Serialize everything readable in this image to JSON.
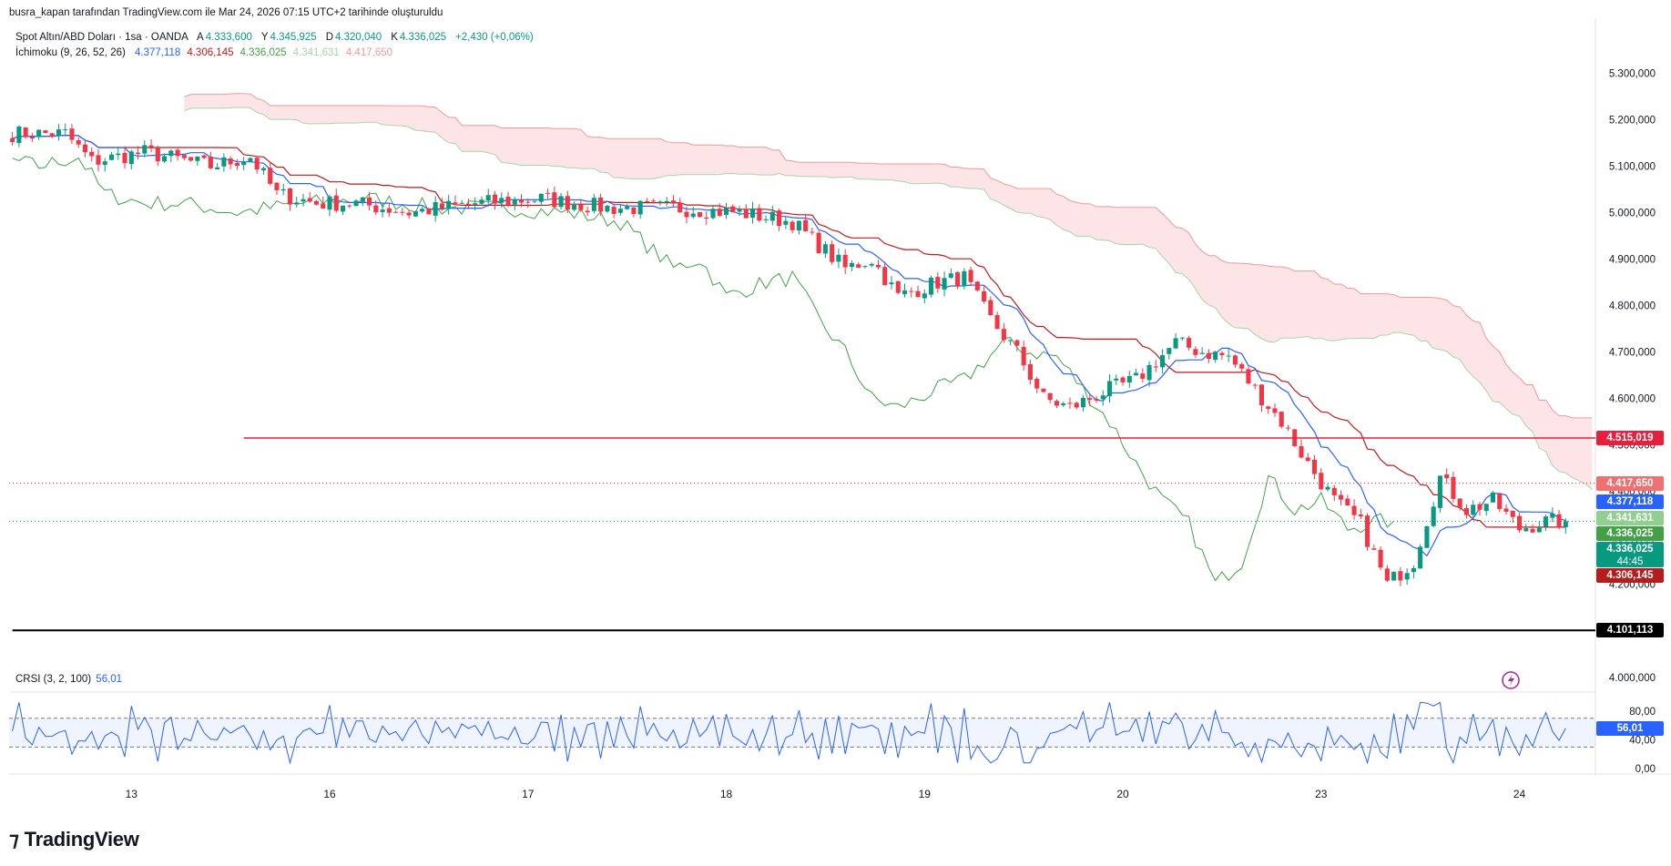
{
  "header": {
    "credit": "busra_kapan tarafından TradingView.com ile Mar 24, 2026 07:15 UTC+2 tarihinde oluşturuldu"
  },
  "legend": {
    "symbol": "Spot Altın/ABD Doları · 1sa · OANDA",
    "ohlc": [
      {
        "k": "A",
        "v": "4.333,600"
      },
      {
        "k": "Y",
        "v": "4.345,925"
      },
      {
        "k": "D",
        "v": "4.320,040"
      },
      {
        "k": "K",
        "v": "4.336,025"
      },
      {
        "k": "",
        "v": "+2,430 (+0,06%)"
      }
    ],
    "ichimoku_label": "İchimoku (9, 26, 52, 26)",
    "ichimoku_values": [
      {
        "v": "4.377,118",
        "color": "#2962ff"
      },
      {
        "v": "4.306,145",
        "color": "#b71c1c"
      },
      {
        "v": "4.336,025",
        "color": "#43a047"
      },
      {
        "v": "4.341,631",
        "color": "#a5d6a7"
      },
      {
        "v": "4.417,650",
        "color": "#ef9a9a"
      }
    ],
    "crsi_label": "CRSI (3, 2, 100)",
    "crsi_value": "56,01"
  },
  "brand": {
    "name": "TradingView"
  },
  "colors": {
    "up": "#089981",
    "down": "#f23645",
    "tenkan": "#2962ff",
    "kijun": "#b71c1c",
    "chikou": "#43a047",
    "span_a": "#a5d6a7",
    "span_b": "#ef9a9a",
    "crsi": "#2962ff",
    "hline_red": "#e91e3c",
    "hline_black": "#000000"
  },
  "chart_data": [
    {
      "type": "candlestick",
      "ylim": [
        3980000,
        5340000
      ],
      "y_ticks": [
        "5.300,000",
        "5.200,000",
        "5.100,000",
        "5.000,000",
        "4.900,000",
        "4.800,000",
        "4.700,000",
        "4.600,000",
        "4.500,000",
        "4.400,000",
        "4.300,000",
        "4.200,000",
        "4.100,000",
        "4.000,000"
      ],
      "y_tick_values": [
        5300000,
        5200000,
        5100000,
        5000000,
        4900000,
        4800000,
        4700000,
        4600000,
        4500000,
        4400000,
        4300000,
        4200000,
        4100000,
        4000000
      ],
      "x_ticks": [
        "13",
        "16",
        "17",
        "18",
        "19",
        "20",
        "23",
        "24"
      ],
      "x_tick_bars": [
        18,
        48,
        78,
        108,
        138,
        168,
        198,
        228
      ],
      "bar_count": 240,
      "horizontal_lines": [
        {
          "value": 4515019,
          "label": "4.515,019",
          "color": "#e91e3c",
          "start_bar": 35
        },
        {
          "value": 4101113,
          "label": "4.101,113",
          "color": "#000000",
          "start_bar": 0
        }
      ],
      "price_tags": [
        {
          "value": 4515019,
          "label": "4.515,019",
          "color": "#e91e3c"
        },
        {
          "value": 4417650,
          "label": "4.417,650",
          "color": "#ef7070"
        },
        {
          "value": 4377118,
          "label": "4.377,118",
          "color": "#2962ff"
        },
        {
          "value": 4341631,
          "label": "4.341,631",
          "color": "#8fcf8f"
        },
        {
          "value": 4336025,
          "label": "4.336,025",
          "color": "#43a047"
        },
        {
          "value": 4336025,
          "label": "4.336,025",
          "color": "#089981",
          "sub": "44:45"
        },
        {
          "value": 4306145,
          "label": "4.306,145",
          "color": "#b71c1c"
        }
      ],
      "close_anchors": [
        [
          0,
          5170000
        ],
        [
          8,
          5170000
        ],
        [
          12,
          5110000
        ],
        [
          20,
          5130000
        ],
        [
          30,
          5100000
        ],
        [
          36,
          5120000
        ],
        [
          40,
          5040000
        ],
        [
          46,
          5020000
        ],
        [
          52,
          5020000
        ],
        [
          60,
          5000000
        ],
        [
          70,
          5020000
        ],
        [
          80,
          5030000
        ],
        [
          90,
          5010000
        ],
        [
          100,
          5010000
        ],
        [
          110,
          5000000
        ],
        [
          118,
          4980000
        ],
        [
          126,
          4880000
        ],
        [
          130,
          4900000
        ],
        [
          134,
          4820000
        ],
        [
          140,
          4850000
        ],
        [
          144,
          4860000
        ],
        [
          148,
          4770000
        ],
        [
          152,
          4700000
        ],
        [
          156,
          4600000
        ],
        [
          160,
          4580000
        ],
        [
          166,
          4620000
        ],
        [
          170,
          4640000
        ],
        [
          176,
          4720000
        ],
        [
          180,
          4700000
        ],
        [
          184,
          4690000
        ],
        [
          188,
          4620000
        ],
        [
          192,
          4550000
        ],
        [
          196,
          4460000
        ],
        [
          200,
          4380000
        ],
        [
          204,
          4330000
        ],
        [
          208,
          4200000
        ],
        [
          212,
          4250000
        ],
        [
          216,
          4430000
        ],
        [
          220,
          4360000
        ],
        [
          224,
          4380000
        ],
        [
          228,
          4320000
        ],
        [
          232,
          4335000
        ],
        [
          235,
          4336025
        ]
      ]
    },
    {
      "type": "line",
      "name": "CRSI (3, 2, 100)",
      "ylim": [
        -5,
        100
      ],
      "y_ticks": [
        "80,00",
        "40,00",
        "0,00"
      ],
      "y_tick_values": [
        80,
        40,
        0
      ],
      "bands": [
        70,
        30
      ],
      "last_value": 56.01
    }
  ]
}
